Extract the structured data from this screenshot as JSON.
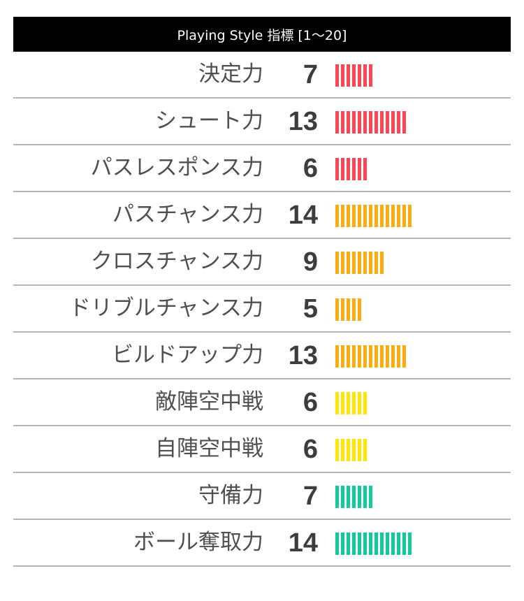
{
  "header": {
    "title": "Playing Style 指標 [1〜20]"
  },
  "colors": {
    "red": "#ff4455",
    "orange": "#ffaa11",
    "yellow": "#ffe600",
    "teal": "#11cc99"
  },
  "chart_data": {
    "type": "bar",
    "title": "Playing Style 指標 [1〜20]",
    "orientation": "horizontal",
    "scale": [
      1,
      20
    ],
    "categories": [
      "決定力",
      "シュート力",
      "パスレスポンス力",
      "パスチャンス力",
      "クロスチャンス力",
      "ドリブルチャンス力",
      "ビルドアップ力",
      "敵陣空中戦",
      "自陣空中戦",
      "守備力",
      "ボール奪取力"
    ],
    "values": [
      7,
      13,
      6,
      14,
      9,
      5,
      13,
      6,
      6,
      7,
      14
    ],
    "bar_colors": [
      "red",
      "red",
      "red",
      "orange",
      "orange",
      "orange",
      "orange",
      "yellow",
      "yellow",
      "teal",
      "teal"
    ]
  }
}
